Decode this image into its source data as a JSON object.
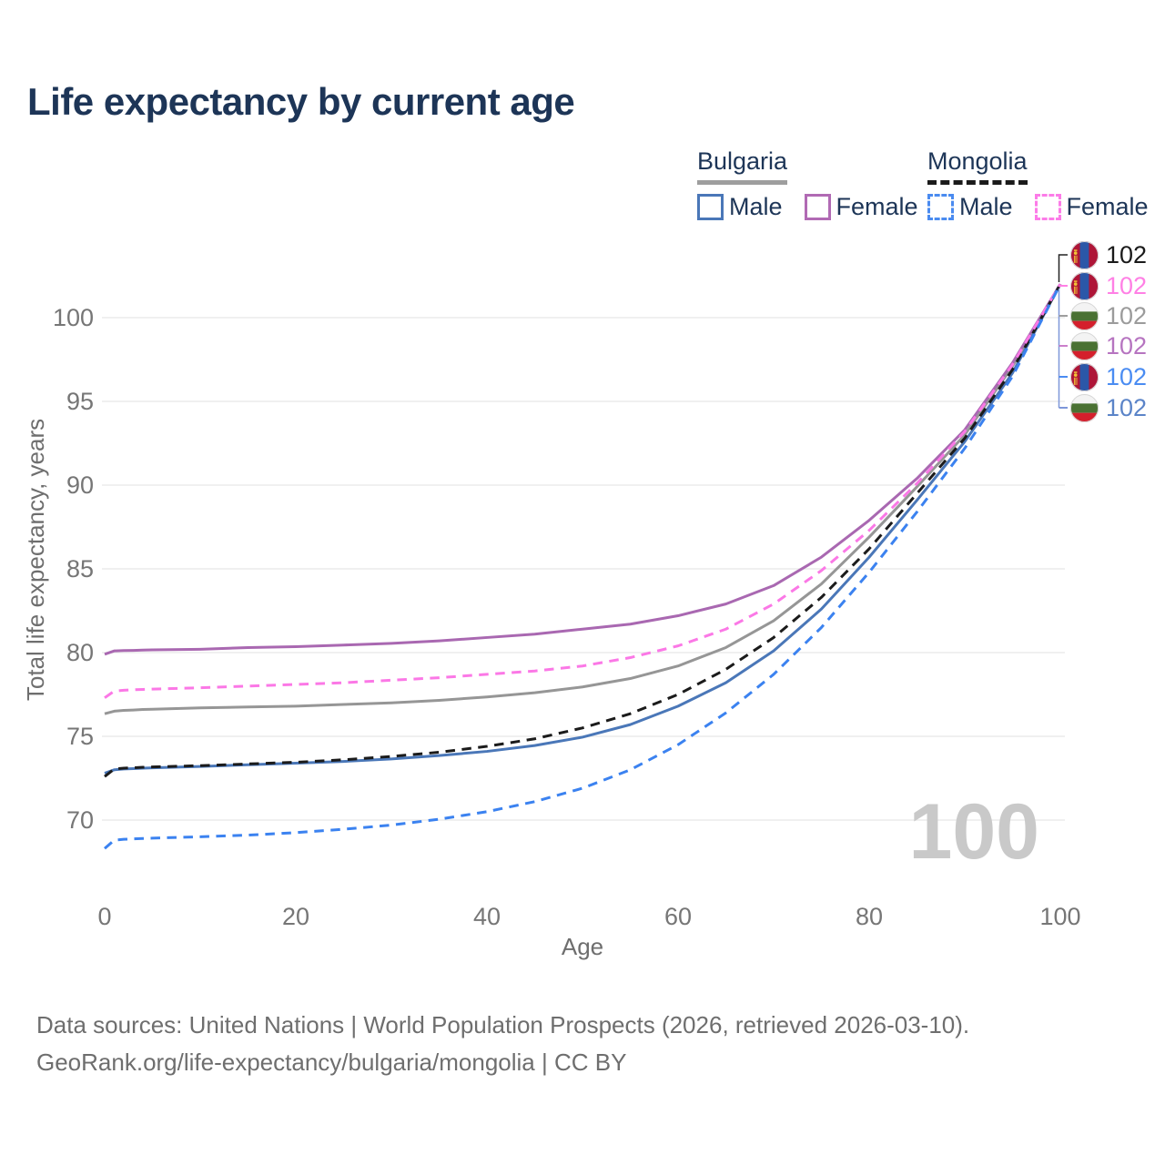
{
  "title": "Life expectancy by current age",
  "legend": {
    "groups": [
      {
        "name": "Bulgaria",
        "line_style": "solid",
        "underline_color": "#9e9e9e",
        "items": [
          {
            "label": "Male",
            "color": "#4a77b8"
          },
          {
            "label": "Female",
            "color": "#b16ab4"
          }
        ]
      },
      {
        "name": "Mongolia",
        "line_style": "dashed",
        "underline_color": "#1b1b1b",
        "items": [
          {
            "label": "Male",
            "color": "#4a8bf0"
          },
          {
            "label": "Female",
            "color": "#fc7ce8"
          }
        ]
      }
    ]
  },
  "chart_data": {
    "type": "line",
    "title": "Life expectancy by current age",
    "xlabel": "Age",
    "ylabel": "Total life expectancy, years",
    "xlim": [
      0,
      100
    ],
    "ylim": [
      67,
      103.5
    ],
    "xticks": [
      0,
      20,
      40,
      60,
      80,
      100
    ],
    "yticks": [
      70,
      75,
      80,
      85,
      90,
      95,
      100
    ],
    "grid": "horizontal-only",
    "legend_position": "top-right",
    "watermark": "100",
    "x": [
      0,
      1,
      2,
      3,
      4,
      5,
      10,
      15,
      20,
      25,
      30,
      35,
      40,
      45,
      50,
      55,
      60,
      65,
      70,
      75,
      80,
      85,
      90,
      95,
      100
    ],
    "series": [
      {
        "name": "Mongolia",
        "country": "Mongolia",
        "group": "total",
        "style": "dashed",
        "color": "#1b1b1b",
        "label_color": "#1a1a1a",
        "flag": "mongolia-flag-icon",
        "end_label": "102",
        "z": 4,
        "values": [
          72.6,
          73.05,
          73.1,
          73.12,
          73.15,
          73.17,
          73.25,
          73.35,
          73.45,
          73.6,
          73.8,
          74.05,
          74.4,
          74.85,
          75.5,
          76.35,
          77.5,
          79.0,
          80.9,
          83.3,
          86.2,
          89.5,
          92.8,
          96.9,
          102
        ]
      },
      {
        "name": "Mongolia Female",
        "country": "Mongolia",
        "group": "female",
        "style": "dashed",
        "color": "#fb78e6",
        "label_color": "#ff80e5",
        "flag": "mongolia-flag-icon",
        "end_label": "102",
        "z": 5,
        "values": [
          77.3,
          77.7,
          77.75,
          77.78,
          77.8,
          77.82,
          77.9,
          78.0,
          78.1,
          78.2,
          78.35,
          78.5,
          78.7,
          78.9,
          79.2,
          79.7,
          80.4,
          81.4,
          82.9,
          84.9,
          87.3,
          90.1,
          93.2,
          97.2,
          102
        ]
      },
      {
        "name": "Bulgaria",
        "country": "Bulgaria",
        "group": "total",
        "style": "solid",
        "color": "#969696",
        "label_color": "#9b9b9b",
        "flag": "bulgaria-flag-icon",
        "end_label": "102",
        "z": 1,
        "values": [
          76.35,
          76.5,
          76.55,
          76.57,
          76.6,
          76.62,
          76.7,
          76.75,
          76.8,
          76.9,
          77.0,
          77.15,
          77.35,
          77.6,
          77.95,
          78.45,
          79.2,
          80.3,
          81.9,
          84.1,
          86.9,
          89.9,
          93.0,
          97.1,
          102
        ]
      },
      {
        "name": "Bulgaria Female",
        "country": "Bulgaria",
        "group": "female",
        "style": "solid",
        "color": "#a968b1",
        "label_color": "#b674c0",
        "flag": "bulgaria-flag-icon",
        "end_label": "102",
        "z": 2,
        "values": [
          79.9,
          80.1,
          80.12,
          80.13,
          80.15,
          80.16,
          80.2,
          80.3,
          80.35,
          80.45,
          80.55,
          80.7,
          80.9,
          81.1,
          81.4,
          81.7,
          82.2,
          82.9,
          84.0,
          85.7,
          87.9,
          90.4,
          93.3,
          97.3,
          102
        ]
      },
      {
        "name": "Mongolia Male",
        "country": "Mongolia",
        "group": "male",
        "style": "dashed",
        "color": "#3b82f0",
        "label_color": "#4a8cf2",
        "flag": "mongolia-flag-icon",
        "end_label": "102",
        "z": 6,
        "values": [
          68.3,
          68.8,
          68.85,
          68.88,
          68.9,
          68.92,
          69.0,
          69.1,
          69.25,
          69.45,
          69.7,
          70.05,
          70.5,
          71.1,
          71.9,
          73.0,
          74.5,
          76.4,
          78.7,
          81.5,
          84.8,
          88.4,
          92.2,
          96.5,
          102
        ]
      },
      {
        "name": "Bulgaria Male",
        "country": "Bulgaria",
        "group": "male",
        "style": "solid",
        "color": "#4a77b8",
        "label_color": "#5b84c8",
        "flag": "bulgaria-flag-icon",
        "end_label": "102",
        "z": 3,
        "values": [
          72.8,
          73.0,
          73.05,
          73.07,
          73.1,
          73.12,
          73.2,
          73.3,
          73.4,
          73.5,
          73.65,
          73.85,
          74.1,
          74.45,
          74.95,
          75.7,
          76.8,
          78.2,
          80.1,
          82.6,
          85.7,
          89.1,
          92.6,
          96.7,
          102
        ]
      }
    ]
  },
  "footer": {
    "line1": "Data sources: United Nations | World Population Prospects (2026, retrieved 2026-03-10).",
    "line2": "GeoRank.org/life-expectancy/bulgaria/mongolia | CC BY"
  }
}
